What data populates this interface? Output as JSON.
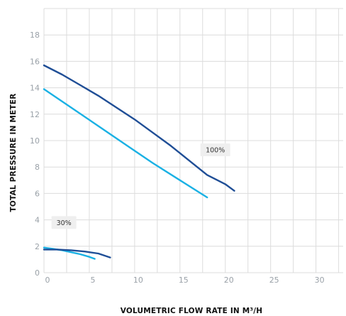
{
  "chart_data": {
    "type": "line",
    "xlabel": "VOLUMETRIC FLOW RATE IN M³/H",
    "ylabel": "TOTAL PRESSURE IN METER",
    "xlim": [
      0,
      33
    ],
    "ylim": [
      0,
      20
    ],
    "x_ticks": [
      0,
      5,
      10,
      15,
      20,
      25,
      30
    ],
    "y_ticks": [
      0,
      2,
      4,
      6,
      8,
      10,
      12,
      14,
      16,
      18
    ],
    "grid": true,
    "legend": "none",
    "series": [
      {
        "group": "100%",
        "color": "#1f4e96",
        "x": [
          0,
          2,
          4,
          6,
          8,
          10,
          12,
          14,
          16,
          18,
          20,
          21
        ],
        "y": [
          15.7,
          15.0,
          14.2,
          13.4,
          12.5,
          11.6,
          10.6,
          9.6,
          8.5,
          7.4,
          6.7,
          6.2
        ]
      },
      {
        "group": "100%",
        "color": "#1ab1e4",
        "x": [
          0,
          3,
          6,
          9,
          12,
          15,
          18
        ],
        "y": [
          13.9,
          12.5,
          11.1,
          9.7,
          8.3,
          7.0,
          5.7
        ]
      },
      {
        "group": "30%",
        "color": "#1ab1e4",
        "x": [
          0,
          1,
          2,
          3,
          4,
          5,
          5.6
        ],
        "y": [
          1.9,
          1.8,
          1.7,
          1.55,
          1.4,
          1.2,
          1.05
        ]
      },
      {
        "group": "30%",
        "color": "#1f4e96",
        "x": [
          0,
          1.5,
          3,
          4.5,
          6,
          7.3
        ],
        "y": [
          1.75,
          1.75,
          1.7,
          1.6,
          1.45,
          1.15
        ]
      }
    ],
    "annotations": [
      {
        "text": "100%",
        "x": 18.9,
        "y": 9.3
      },
      {
        "text": "30%",
        "x": 2.2,
        "y": 3.8
      }
    ]
  }
}
